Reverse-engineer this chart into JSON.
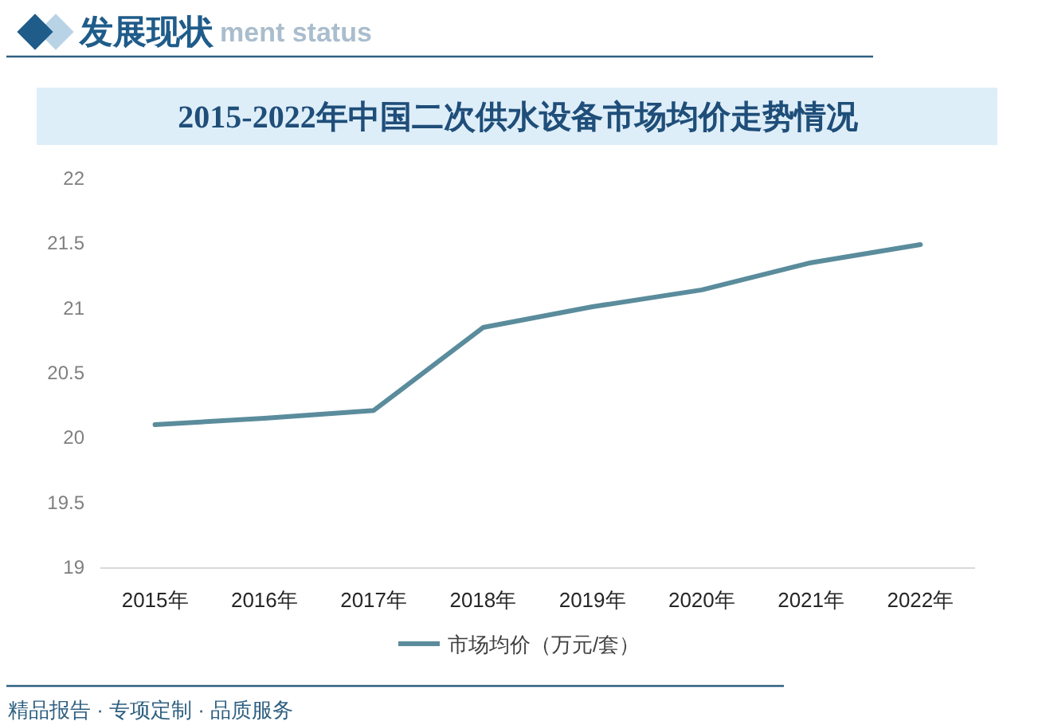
{
  "chart_data": {
    "type": "line",
    "title": "2015-2022年中国二次供水设备市场均价走势情况",
    "categories": [
      "2015年",
      "2016年",
      "2017年",
      "2018年",
      "2019年",
      "2020年",
      "2021年",
      "2022年"
    ],
    "series": [
      {
        "name": "市场均价（万元/套）",
        "color": "#5a8c9c",
        "values": [
          20.1,
          20.15,
          20.21,
          20.85,
          21.01,
          21.14,
          21.35,
          21.49
        ]
      }
    ],
    "ylim": [
      19,
      22
    ],
    "yticks": [
      19,
      19.5,
      20,
      20.5,
      21,
      21.5,
      22
    ],
    "grid": false,
    "legend": "bottom",
    "marker": "none",
    "line_style": "solid",
    "annotations": [
      "发展现状",
      "ment status",
      "精品报告 · 专项定制 · 品质服务"
    ]
  }
}
